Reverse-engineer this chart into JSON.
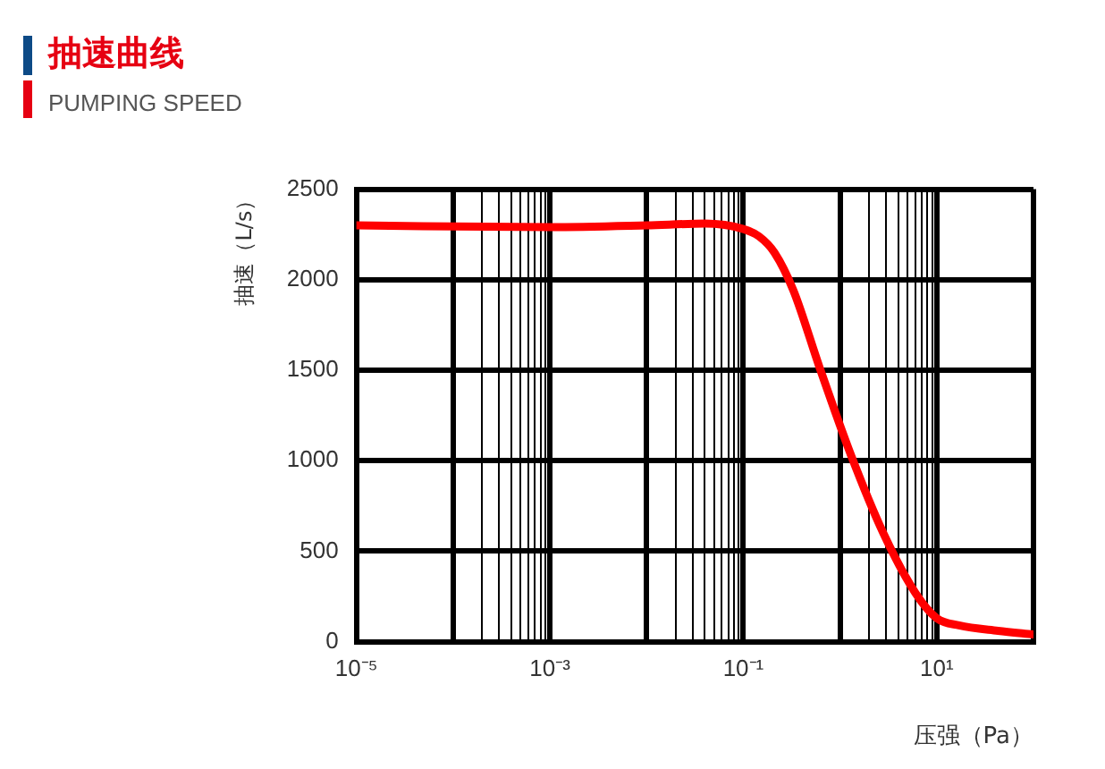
{
  "chart_data": {
    "type": "line",
    "title": "抽速曲线",
    "subtitle": "PUMPING SPEED",
    "xlabel": "压强（Pa）",
    "ylabel": "抽速（L/s）",
    "x": [
      1e-05,
      0.001,
      0.01,
      0.04,
      0.1,
      0.145,
      0.21,
      0.33,
      0.61,
      1.3,
      2.8,
      6,
      10,
      17,
      43,
      100
    ],
    "series": [
      {
        "color": "#ff0000",
        "values": [
          2300,
          2290,
          2300,
          2310,
          2280,
          2240,
          2150,
          1940,
          1520,
          1030,
          600,
          270,
          130,
          90,
          60,
          40
        ]
      }
    ],
    "log": "x",
    "xlim": [
      1e-05,
      100
    ],
    "ylim": [
      0,
      2500
    ],
    "yticks": [
      0,
      500,
      1000,
      1500,
      2000,
      2500
    ],
    "xticks": [
      {
        "value": 1e-05,
        "label": "10⁻⁵"
      },
      {
        "value": 0.0001,
        "label": null
      },
      {
        "value": 0.0002,
        "label": null
      },
      {
        "value": 0.0003,
        "label": null
      },
      {
        "value": 0.0004,
        "label": null
      },
      {
        "value": 0.0005,
        "label": null
      },
      {
        "value": 0.0006,
        "label": null
      },
      {
        "value": 0.0007,
        "label": null
      },
      {
        "value": 0.0008,
        "label": null
      },
      {
        "value": 0.0009,
        "label": null
      },
      {
        "value": 0.001,
        "label": "10⁻³"
      },
      {
        "value": 0.01,
        "label": null
      },
      {
        "value": 0.02,
        "label": null
      },
      {
        "value": 0.03,
        "label": null
      },
      {
        "value": 0.04,
        "label": null
      },
      {
        "value": 0.05,
        "label": null
      },
      {
        "value": 0.06,
        "label": null
      },
      {
        "value": 0.07,
        "label": null
      },
      {
        "value": 0.08,
        "label": null
      },
      {
        "value": 0.09,
        "label": null
      },
      {
        "value": 0.1,
        "label": "10⁻¹"
      },
      {
        "value": 1,
        "label": null
      },
      {
        "value": 2,
        "label": null
      },
      {
        "value": 3,
        "label": null
      },
      {
        "value": 4,
        "label": null
      },
      {
        "value": 5,
        "label": null
      },
      {
        "value": 6,
        "label": null
      },
      {
        "value": 7,
        "label": null
      },
      {
        "value": 8,
        "label": null
      },
      {
        "value": 9,
        "label": null
      },
      {
        "value": 10,
        "label": "10¹"
      },
      {
        "value": 100,
        "label": null
      }
    ],
    "grid": true,
    "legend": false,
    "marker": "none",
    "line_style": "solid"
  }
}
